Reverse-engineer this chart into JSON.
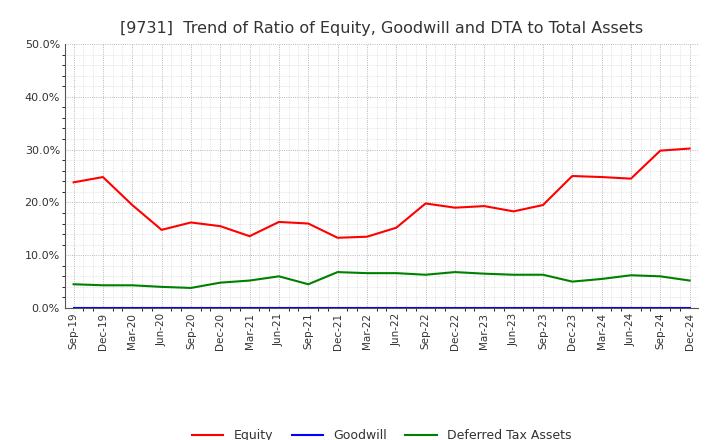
{
  "title": "[9731]  Trend of Ratio of Equity, Goodwill and DTA to Total Assets",
  "x_labels": [
    "Sep-19",
    "Dec-19",
    "Mar-20",
    "Jun-20",
    "Sep-20",
    "Dec-20",
    "Mar-21",
    "Jun-21",
    "Sep-21",
    "Dec-21",
    "Mar-22",
    "Jun-22",
    "Sep-22",
    "Dec-22",
    "Mar-23",
    "Jun-23",
    "Sep-23",
    "Dec-23",
    "Mar-24",
    "Jun-24",
    "Sep-24",
    "Dec-24"
  ],
  "equity": [
    0.238,
    0.248,
    0.195,
    0.148,
    0.162,
    0.155,
    0.136,
    0.163,
    0.16,
    0.133,
    0.135,
    0.152,
    0.198,
    0.19,
    0.193,
    0.183,
    0.195,
    0.25,
    0.248,
    0.245,
    0.298,
    0.302
  ],
  "goodwill": [
    0.0,
    0.0,
    0.0,
    0.0,
    0.0,
    0.0,
    0.0,
    0.0,
    0.0,
    0.0,
    0.0,
    0.0,
    0.0,
    0.0,
    0.0,
    0.0,
    0.0,
    0.0,
    0.0,
    0.0,
    0.0,
    0.0
  ],
  "dta": [
    0.045,
    0.043,
    0.043,
    0.04,
    0.038,
    0.048,
    0.052,
    0.06,
    0.045,
    0.068,
    0.066,
    0.066,
    0.063,
    0.068,
    0.065,
    0.063,
    0.063,
    0.05,
    0.055,
    0.062,
    0.06,
    0.052
  ],
  "equity_color": "#ff0000",
  "goodwill_color": "#0000ff",
  "dta_color": "#008000",
  "ylim": [
    0.0,
    0.5
  ],
  "yticks": [
    0.0,
    0.1,
    0.2,
    0.3,
    0.4,
    0.5
  ],
  "background_color": "#ffffff",
  "plot_bg_color": "#ffffff",
  "grid_color": "#999999",
  "title_fontsize": 11.5,
  "title_color": "#333333",
  "legend_labels": [
    "Equity",
    "Goodwill",
    "Deferred Tax Assets"
  ]
}
